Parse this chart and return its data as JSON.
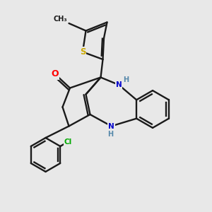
{
  "background_color": "#e8e8e8",
  "bond_color": "#1a1a1a",
  "atom_colors": {
    "S": "#ccaa00",
    "O": "#ff0000",
    "N": "#0000cc",
    "Cl": "#00aa00",
    "C": "#1a1a1a",
    "H": "#5588aa"
  },
  "figsize": [
    3.0,
    3.0
  ],
  "dpi": 100
}
